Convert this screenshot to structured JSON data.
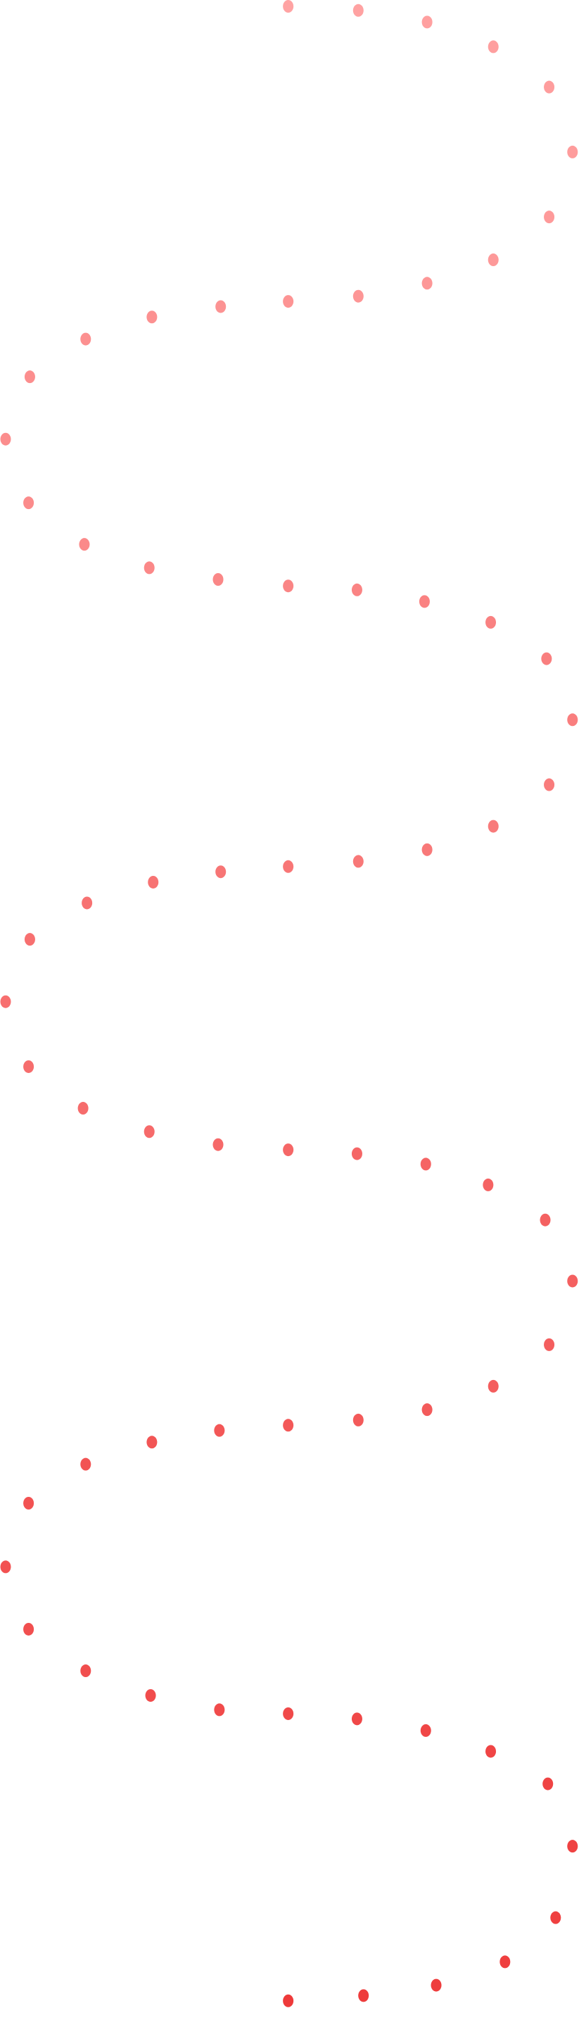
{
  "decoration": {
    "type": "dotted-wave-path",
    "color_start": "#ffa3a3",
    "color_end": "#ee3a3a"
  }
}
